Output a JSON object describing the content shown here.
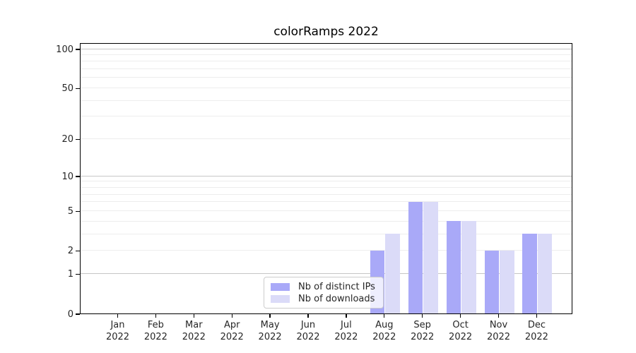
{
  "chart_data": {
    "type": "bar",
    "title": "colorRamps 2022",
    "categories": [
      "Jan",
      "Feb",
      "Mar",
      "Apr",
      "May",
      "Jun",
      "Jul",
      "Aug",
      "Sep",
      "Oct",
      "Nov",
      "Dec"
    ],
    "category_year": "2022",
    "series": [
      {
        "name": "Nb of distinct IPs",
        "color": "#a9a9f8",
        "values": [
          0,
          0,
          0,
          0,
          0,
          0,
          0,
          2,
          6,
          4,
          2,
          3
        ]
      },
      {
        "name": "Nb of downloads",
        "color": "#dbdbf8",
        "values": [
          0,
          0,
          0,
          0,
          0,
          0,
          0,
          3,
          6,
          4,
          2,
          3
        ]
      }
    ],
    "xlabel": "",
    "ylabel": "",
    "y_axis": {
      "scale": "log1p",
      "min": 0,
      "max": 100,
      "tick_labels": [
        0,
        1,
        2,
        5,
        10,
        20,
        50,
        100
      ],
      "major_gridlines": [
        1,
        10,
        100
      ],
      "minor_gridlines": [
        2,
        3,
        4,
        5,
        6,
        7,
        8,
        9,
        20,
        30,
        40,
        50,
        60,
        70,
        80,
        90
      ]
    },
    "grid": true,
    "legend_position": "lower-center",
    "colors": {
      "grid_major": "#c6c6c6",
      "grid_minor": "#ededed",
      "axis": "#000000",
      "text": "#262626",
      "background": "#ffffff"
    }
  }
}
